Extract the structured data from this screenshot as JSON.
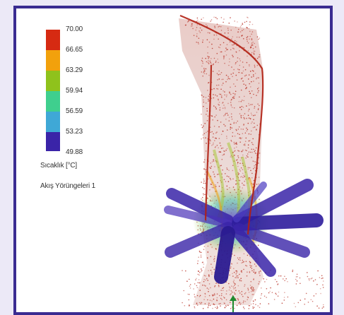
{
  "legend": {
    "ticks": [
      "70.00",
      "66.65",
      "63.29",
      "59.94",
      "56.59",
      "53.23",
      "49.88"
    ],
    "colors": [
      "#d62a12",
      "#f2a10c",
      "#8fc21c",
      "#3fcf8e",
      "#3fa8d6",
      "#3a24a8"
    ],
    "quantity_label": "Sıcaklık [°C]",
    "dataset_label": "Akış Yörüngeleri 1"
  },
  "scene": {
    "particle_color": "#b5271b",
    "hot_color": "#d62a12",
    "cold_color": "#3a24a8",
    "inlet_arrow_color": "#1e8a2e"
  }
}
